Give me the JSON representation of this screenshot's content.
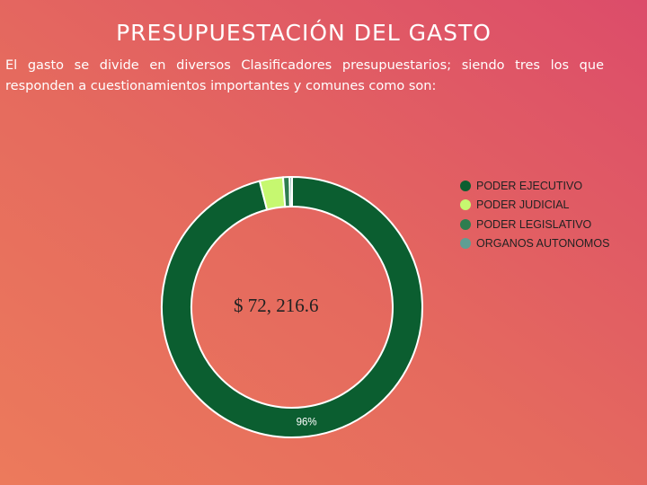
{
  "header": {
    "title": "PRESUPUESTACIÓN DEL GASTO",
    "intro": "El gasto se divide en diversos Clasificadores presupuestarios; siendo tres los que responden a cuestionamientos importantes y comunes como son:"
  },
  "total_label": "$ 72, 216.6",
  "chart_data": {
    "type": "pie",
    "donut": true,
    "series": [
      {
        "name": "PODER EJECUTIVO",
        "value": 96.0,
        "color": "#0b5e30",
        "label": "96%"
      },
      {
        "name": "PODER JUDICIAL",
        "value": 2.9,
        "color": "#c6f870",
        "label": ""
      },
      {
        "name": "PODER LEGISLATIVO",
        "value": 0.8,
        "color": "#2e7d4f",
        "label": ""
      },
      {
        "name": "ORGANOS AUTONOMOS",
        "value": 0.3,
        "color": "#5f9e93",
        "label": ""
      }
    ],
    "legend_position": "right"
  }
}
